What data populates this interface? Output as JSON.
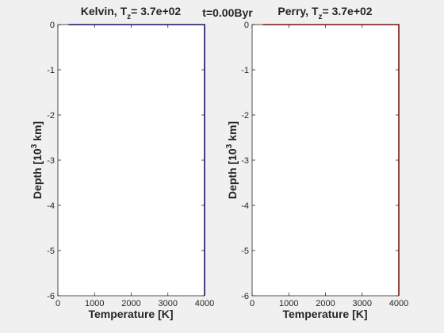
{
  "figure": {
    "center_title": "t=0.00Byr"
  },
  "chart_data": [
    {
      "type": "line",
      "title": {
        "main": "Kelvin, T",
        "sub": "z",
        "rest": "= 3.7e+02"
      },
      "xlabel": "Temperature [K]",
      "ylabel": {
        "main": "Depth [10",
        "sup": "3",
        "rest": " km]"
      },
      "xlim": [
        0,
        4000
      ],
      "ylim": [
        -6,
        0
      ],
      "xticks": [
        0,
        1000,
        2000,
        3000,
        4000
      ],
      "xtick_labels": [
        "0",
        "1000",
        "2000",
        "3000",
        "4000"
      ],
      "yticks": [
        0,
        -1,
        -2,
        -3,
        -4,
        -5,
        -6
      ],
      "ytick_labels": [
        "0",
        "-1",
        "-2",
        "-3",
        "-4",
        "-5",
        "-6"
      ],
      "series": [
        {
          "color": "#0000a8",
          "x": [
            290,
            4000,
            4000
          ],
          "y": [
            0,
            0,
            -6
          ]
        }
      ]
    },
    {
      "type": "line",
      "title": {
        "main": "Perry, T",
        "sub": "z",
        "rest": "= 3.7e+02"
      },
      "xlabel": "Temperature [K]",
      "ylabel": {
        "main": "Depth [10",
        "sup": "3",
        "rest": " km]"
      },
      "xlim": [
        0,
        4000
      ],
      "ylim": [
        -6,
        0
      ],
      "xticks": [
        0,
        1000,
        2000,
        3000,
        4000
      ],
      "xtick_labels": [
        "0",
        "1000",
        "2000",
        "3000",
        "4000"
      ],
      "yticks": [
        0,
        -1,
        -2,
        -3,
        -4,
        -5,
        -6
      ],
      "ytick_labels": [
        "0",
        "-1",
        "-2",
        "-3",
        "-4",
        "-5",
        "-6"
      ],
      "series": [
        {
          "color": "#cc0000",
          "x": [
            290,
            4000,
            4000
          ],
          "y": [
            0,
            0,
            -6
          ]
        }
      ]
    }
  ]
}
